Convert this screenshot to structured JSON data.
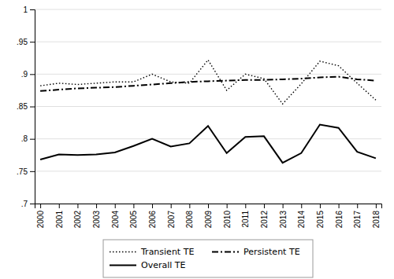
{
  "chart_data": {
    "type": "line",
    "x": [
      2000,
      2001,
      2002,
      2003,
      2004,
      2005,
      2006,
      2007,
      2008,
      2009,
      2010,
      2011,
      2012,
      2013,
      2014,
      2015,
      2016,
      2017,
      2018
    ],
    "series": [
      {
        "name": "Transient TE",
        "color": "#000000",
        "line_style": "dotted",
        "values": [
          0.882,
          0.886,
          0.884,
          0.886,
          0.888,
          0.888,
          0.9,
          0.888,
          0.886,
          0.922,
          0.875,
          0.9,
          0.893,
          0.854,
          0.885,
          0.92,
          0.913,
          0.886,
          0.86
        ]
      },
      {
        "name": "Persistent TE",
        "color": "#000000",
        "line_style": "dashdot",
        "values": [
          0.874,
          0.876,
          0.878,
          0.879,
          0.88,
          0.882,
          0.884,
          0.886,
          0.888,
          0.889,
          0.89,
          0.891,
          0.891,
          0.892,
          0.893,
          0.895,
          0.896,
          0.892,
          0.89
        ]
      },
      {
        "name": "Overall TE",
        "color": "#000000",
        "line_style": "solid",
        "values": [
          0.768,
          0.776,
          0.775,
          0.776,
          0.779,
          0.789,
          0.8,
          0.788,
          0.793,
          0.82,
          0.778,
          0.803,
          0.804,
          0.763,
          0.778,
          0.822,
          0.817,
          0.78,
          0.77
        ]
      }
    ],
    "xlim": [
      1999.7,
      2018.3
    ],
    "xticks": [
      2000,
      2001,
      2002,
      2003,
      2004,
      2005,
      2006,
      2007,
      2008,
      2009,
      2010,
      2011,
      2012,
      2013,
      2014,
      2015,
      2016,
      2017,
      2018
    ],
    "ylim": [
      0.7,
      1.0
    ],
    "yticks": [
      {
        "value": 0.7,
        "label": ".7"
      },
      {
        "value": 0.75,
        "label": ".75"
      },
      {
        "value": 0.8,
        "label": ".8"
      },
      {
        "value": 0.85,
        "label": ".85"
      },
      {
        "value": 0.9,
        "label": ".9"
      },
      {
        "value": 0.95,
        "label": ".95"
      },
      1
    ],
    "grid": true,
    "legend": "bottom"
  }
}
